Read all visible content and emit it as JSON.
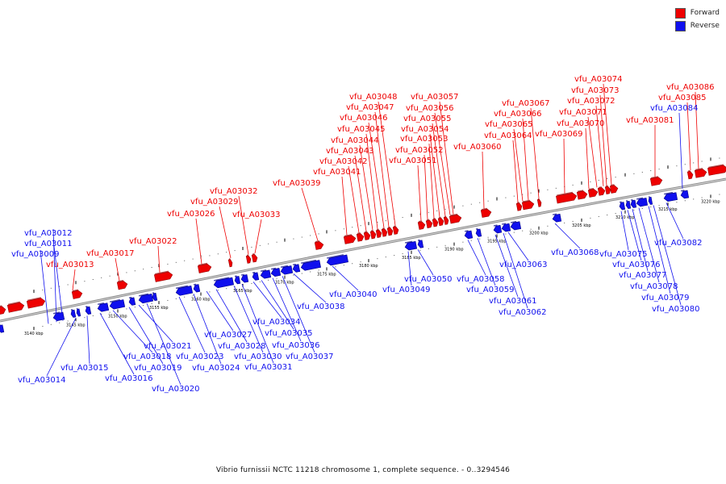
{
  "legend": {
    "forward_label": "Forward",
    "reverse_label": "Reverse",
    "forward_color": "#ee0000",
    "reverse_color": "#1010ee"
  },
  "caption": "Vibrio furnissii NCTC 11218 chromosome 1, complete sequence. - 0..3294546",
  "ticks": [
    "3140 kbp",
    "3145 kbp",
    "3150 kbp",
    "3155 kbp",
    "3160 kbp",
    "3165 kbp",
    "3170 kbp",
    "3175 kbp",
    "3180 kbp",
    "3185 kbp",
    "3190 kbp",
    "3195 kbp",
    "3200 kbp",
    "3205 kbp",
    "3210 kbp",
    "3215 kbp",
    "3220 kbp"
  ],
  "forward_genes": [
    "vfu_A03013",
    "vfu_A03017",
    "vfu_A03022",
    "vfu_A03026",
    "vfu_A03029",
    "vfu_A03032",
    "vfu_A03033",
    "vfu_A03039",
    "vfu_A03041",
    "vfu_A03042",
    "vfu_A03043",
    "vfu_A03044",
    "vfu_A03045",
    "vfu_A03046",
    "vfu_A03047",
    "vfu_A03048",
    "vfu_A03051",
    "vfu_A03052",
    "vfu_A03053",
    "vfu_A03054",
    "vfu_A03055",
    "vfu_A03056",
    "vfu_A03057",
    "vfu_A03060",
    "vfu_A03064",
    "vfu_A03065",
    "vfu_A03066",
    "vfu_A03067",
    "vfu_A03069",
    "vfu_A03070",
    "vfu_A03071",
    "vfu_A03072",
    "vfu_A03073",
    "vfu_A03074",
    "vfu_A03081",
    "vfu_A03085",
    "vfu_A03086"
  ],
  "reverse_genes": [
    "vfu_A03009",
    "vfu_A03011",
    "vfu_A03012",
    "vfu_A03014",
    "vfu_A03015",
    "vfu_A03016",
    "vfu_A03018",
    "vfu_A03019",
    "vfu_A03020",
    "vfu_A03021",
    "vfu_A03023",
    "vfu_A03024",
    "vfu_A03027",
    "vfu_A03028",
    "vfu_A03030",
    "vfu_A03031",
    "vfu_A03034",
    "vfu_A03035",
    "vfu_A03036",
    "vfu_A03037",
    "vfu_A03038",
    "vfu_A03040",
    "vfu_A03049",
    "vfu_A03050",
    "vfu_A03058",
    "vfu_A03059",
    "vfu_A03061",
    "vfu_A03062",
    "vfu_A03063",
    "vfu_A03068",
    "vfu_A03075",
    "vfu_A03076",
    "vfu_A03077",
    "vfu_A03078",
    "vfu_A03079",
    "vfu_A03080",
    "vfu_A03082",
    "vfu_A03084"
  ]
}
